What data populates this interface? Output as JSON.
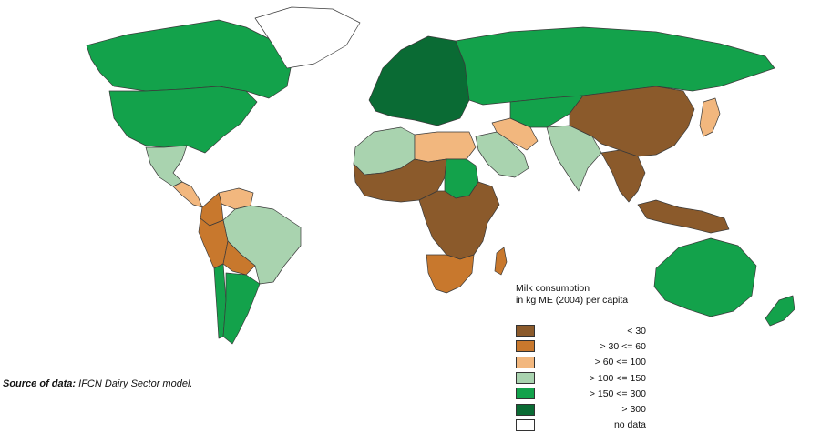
{
  "legend": {
    "title_line1": "Milk consumption",
    "title_line2": "in kg ME (2004) per capita",
    "items": [
      {
        "label": "< 30",
        "color": "#8b5a2b"
      },
      {
        "label": "> 30 <= 60",
        "color": "#c8782d"
      },
      {
        "label": "> 60 <= 100",
        "color": "#f2b77e"
      },
      {
        "label": "> 100 <= 150",
        "color": "#a9d3af"
      },
      {
        "label": "> 150 <= 300",
        "color": "#13a24b"
      },
      {
        "label": "> 300",
        "color": "#0a6b34"
      },
      {
        "label": "no data",
        "color": "#ffffff"
      }
    ]
  },
  "source": {
    "prefix": "Source of data:",
    "text": "IFCN Dairy Sector model."
  },
  "regions": [
    {
      "name": "canada-region",
      "cls": "g150"
    },
    {
      "name": "greenland-region",
      "cls": "nodata"
    },
    {
      "name": "usa-region",
      "cls": "g150"
    },
    {
      "name": "mexico-region",
      "cls": "g100"
    },
    {
      "name": "central-america-region",
      "cls": "g60"
    },
    {
      "name": "venezuela-region",
      "cls": "g60"
    },
    {
      "name": "colombia-region",
      "cls": "g30"
    },
    {
      "name": "brazil-region",
      "cls": "g100"
    },
    {
      "name": "peru-region",
      "cls": "g30"
    },
    {
      "name": "bolivia-region",
      "cls": "g30"
    },
    {
      "name": "chile-region",
      "cls": "g150"
    },
    {
      "name": "argentina-region",
      "cls": "g150"
    },
    {
      "name": "europe-region",
      "cls": "g300"
    },
    {
      "name": "russia-region",
      "cls": "g150"
    },
    {
      "name": "north-africa-region",
      "cls": "g100"
    },
    {
      "name": "libya-egypt-region",
      "cls": "g60"
    },
    {
      "name": "west-africa-region",
      "cls": "lt30"
    },
    {
      "name": "sudan-region",
      "cls": "g150"
    },
    {
      "name": "central-africa-region",
      "cls": "lt30"
    },
    {
      "name": "southern-africa-region",
      "cls": "g30"
    },
    {
      "name": "madagascar-region",
      "cls": "g30"
    },
    {
      "name": "arabia-region",
      "cls": "g100"
    },
    {
      "name": "iran-region",
      "cls": "g60"
    },
    {
      "name": "central-asia-region",
      "cls": "g150"
    },
    {
      "name": "india-region",
      "cls": "g100"
    },
    {
      "name": "china-region",
      "cls": "lt30"
    },
    {
      "name": "japan-region",
      "cls": "g60"
    },
    {
      "name": "southeast-asia-region",
      "cls": "lt30"
    },
    {
      "name": "indonesia-region",
      "cls": "lt30"
    },
    {
      "name": "australia-region",
      "cls": "g150"
    },
    {
      "name": "new-zealand-region",
      "cls": "g150"
    }
  ]
}
